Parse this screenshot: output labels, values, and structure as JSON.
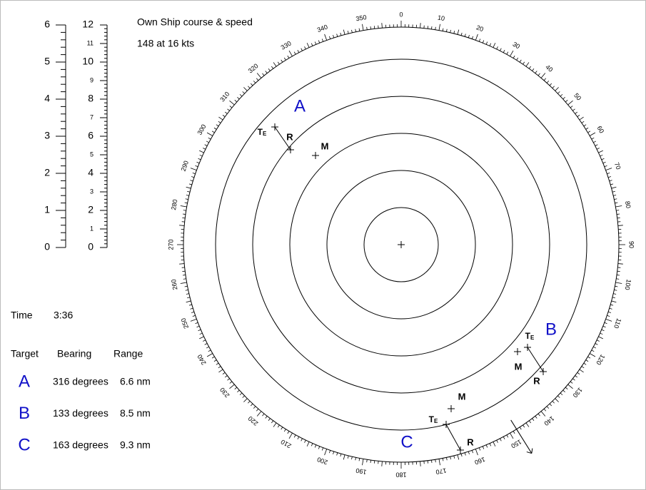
{
  "header": {
    "title": "Own Ship course & speed",
    "value": "148 at 16 kts"
  },
  "scales": {
    "left": [
      0,
      1,
      2,
      3,
      4,
      5,
      6
    ],
    "right": [
      0,
      1,
      2,
      3,
      4,
      5,
      6,
      7,
      8,
      9,
      10,
      11,
      12
    ]
  },
  "time": {
    "label": "Time",
    "value": "3:36"
  },
  "table": {
    "headers": [
      "Target",
      "Bearing",
      "Range"
    ],
    "rows": [
      [
        "A",
        "316 degrees",
        "6.6 nm"
      ],
      [
        "B",
        "133 degrees",
        "8.5 nm"
      ],
      [
        "C",
        "163 degrees",
        "9.3 nm"
      ]
    ]
  },
  "compass": {
    "bearing_labels": [
      0,
      10,
      20,
      30,
      40,
      50,
      60,
      70,
      80,
      90,
      100,
      110,
      120,
      130,
      140,
      150,
      160,
      170,
      180,
      190,
      200,
      210,
      220,
      230,
      240,
      250,
      260,
      270,
      280,
      290,
      300,
      310,
      320,
      330,
      340,
      350
    ]
  },
  "plot": {
    "targets": [
      {
        "name": "A",
        "te": "T",
        "te_sub": "E",
        "r": "R",
        "m": "M"
      },
      {
        "name": "B",
        "te": "T",
        "te_sub": "E",
        "r": "R",
        "m": "M"
      },
      {
        "name": "C",
        "te": "T",
        "te_sub": "E",
        "r": "R",
        "m": "M"
      }
    ]
  }
}
